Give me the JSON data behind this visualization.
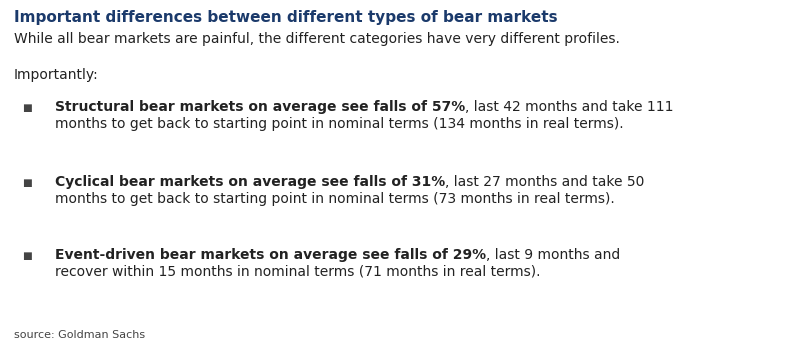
{
  "title": "Important differences between different types of bear markets",
  "subtitle": "While all bear markets are painful, the different categories have very different profiles.",
  "intro": "Importantly:",
  "bullets": [
    {
      "bold_part": "Structural bear markets on average see falls of 57%",
      "normal_part": ", last 42 months and take 111",
      "second_line": "months to get back to starting point in nominal terms (134 months in real terms)."
    },
    {
      "bold_part": "Cyclical bear markets on average see falls of 31%",
      "normal_part": ", last 27 months and take 50",
      "second_line": "months to get back to starting point in nominal terms (73 months in real terms)."
    },
    {
      "bold_part": "Event-driven bear markets on average see falls of 29%",
      "normal_part": ", last 9 months and",
      "second_line": "recover within 15 months in nominal terms (71 months in real terms)."
    }
  ],
  "source": "source: Goldman Sachs",
  "title_color": "#1b3a6b",
  "text_color": "#222222",
  "bullet_color": "#444444",
  "source_color": "#444444",
  "background_color": "#ffffff",
  "title_fontsize": 11.0,
  "subtitle_fontsize": 10.0,
  "intro_fontsize": 10.0,
  "bullet_fontsize": 10.0,
  "source_fontsize": 8.0
}
